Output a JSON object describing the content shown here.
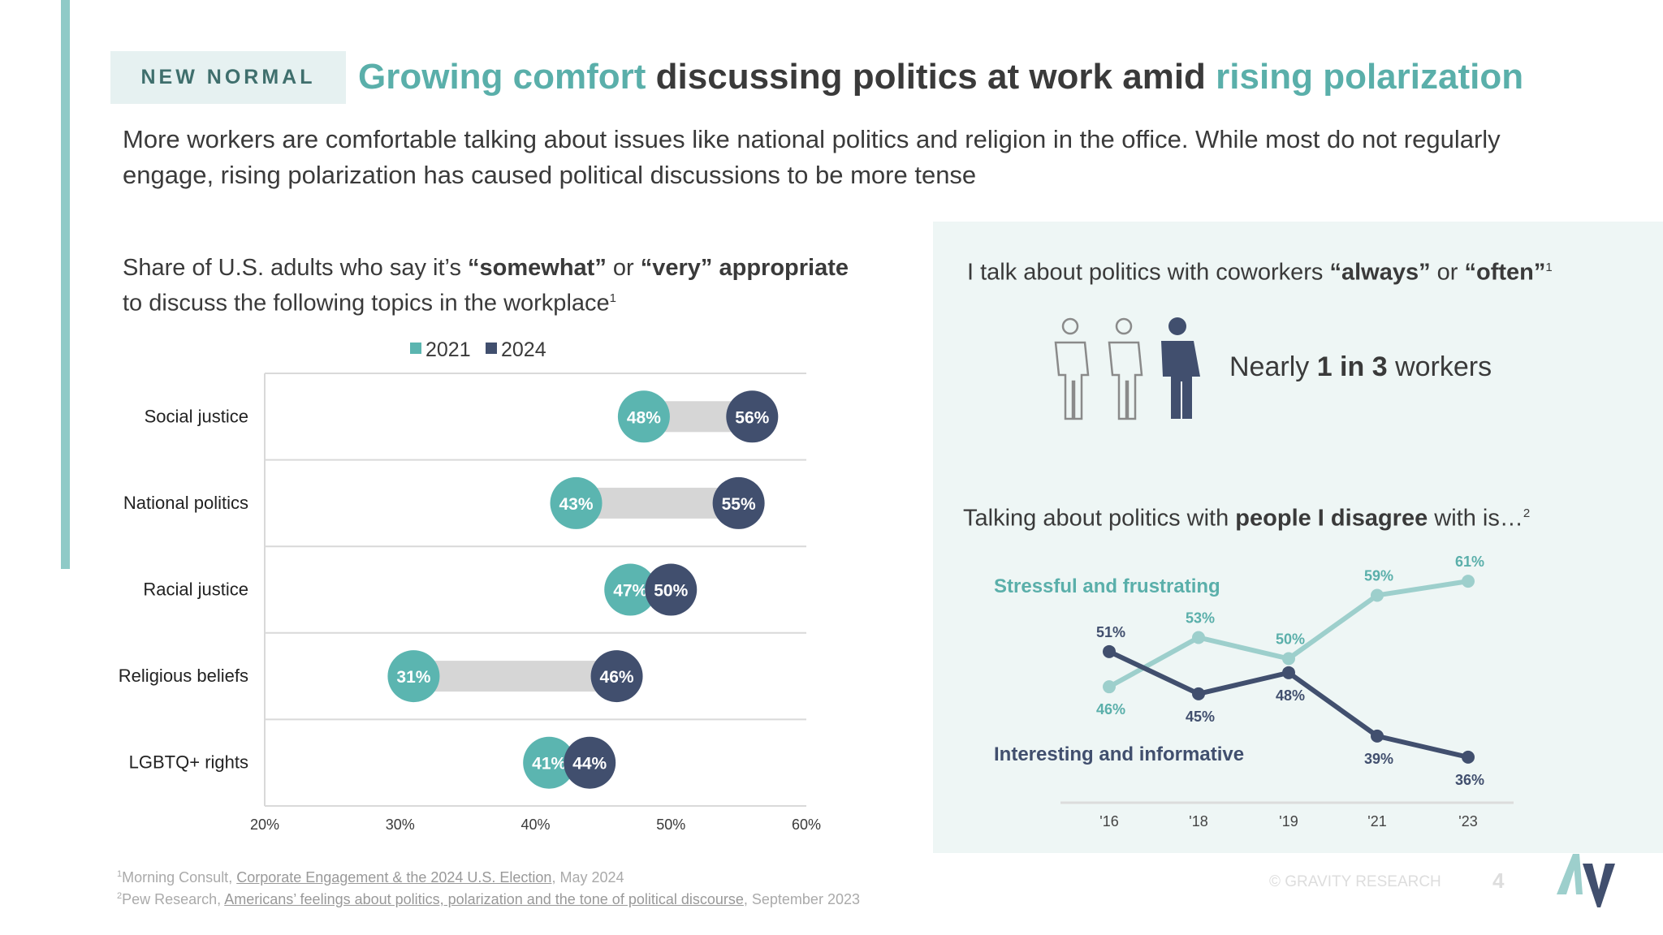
{
  "header": {
    "tag": "NEW NORMAL",
    "title_parts": [
      "Growing comfort",
      " discussing politics at work amid ",
      "rising polarization"
    ],
    "subtitle": "More workers are comfortable talking about issues like national politics and religion in the office. While most do not regularly engage, rising polarization has caused political discussions to be more tense"
  },
  "left": {
    "heading_parts": [
      "Share of U.S. adults who say it’s ",
      "“somewhat”",
      " or ",
      "“very” appropriate",
      " to discuss the following topics in the workplace",
      "1"
    ]
  },
  "right": {
    "heading_parts": [
      "I talk about politics with coworkers ",
      "“always”",
      " or ",
      "“often”",
      "1"
    ],
    "stat_parts": [
      "Nearly ",
      "1 in 3",
      " workers"
    ],
    "heading2_parts": [
      "Talking about politics with ",
      "people I disagree",
      " with is…",
      "2"
    ]
  },
  "colors": {
    "teal": "#5bb5b0",
    "navy": "#414f6e",
    "light_teal_line": "#9dcfcc",
    "accent_text": "#5aafaa"
  },
  "chart_data": [
    {
      "type": "dumbbell",
      "legend": [
        "2021",
        "2024"
      ],
      "legend_placement": "top",
      "categories": [
        "Social justice",
        "National politics",
        "Racial justice",
        "Religious beliefs",
        "LGBTQ+ rights"
      ],
      "series": [
        {
          "name": "2021",
          "values": [
            48,
            43,
            47,
            31,
            41
          ],
          "labels": [
            "48%",
            "43%",
            "47%",
            "31%",
            "41%"
          ]
        },
        {
          "name": "2024",
          "values": [
            56,
            55,
            50,
            46,
            44
          ],
          "labels": [
            "56%",
            "55%",
            "50%",
            "46%",
            "44%"
          ]
        }
      ],
      "xlim": [
        20,
        60
      ],
      "xticks": [
        "20%",
        "30%",
        "40%",
        "50%",
        "60%"
      ]
    },
    {
      "type": "line",
      "categories": [
        "'16",
        "'18",
        "'19",
        "'21",
        "'23"
      ],
      "series": [
        {
          "name": "Stressful and frustrating",
          "values": [
            46,
            53,
            50,
            59,
            61
          ],
          "labels": [
            "46%",
            "53%",
            "50%",
            "59%",
            "61%"
          ]
        },
        {
          "name": "Interesting and informative",
          "values": [
            51,
            45,
            48,
            39,
            36
          ],
          "labels": [
            "51%",
            "45%",
            "48%",
            "39%",
            "36%"
          ]
        }
      ]
    }
  ],
  "footer": {
    "note1": {
      "sup": "1",
      "pre": "Morning Consult, ",
      "link": "Corporate Engagement & the 2024 U.S. Election",
      "post": ", May 2024"
    },
    "note2": {
      "sup": "2",
      "pre": "Pew Research, ",
      "link": "Americans’ feelings about politics, polarization and the tone of political discourse",
      "post": ", September 2023"
    },
    "copyright": "© GRAVITY RESEARCH",
    "page_number": "4",
    "logo_text": "AV"
  }
}
